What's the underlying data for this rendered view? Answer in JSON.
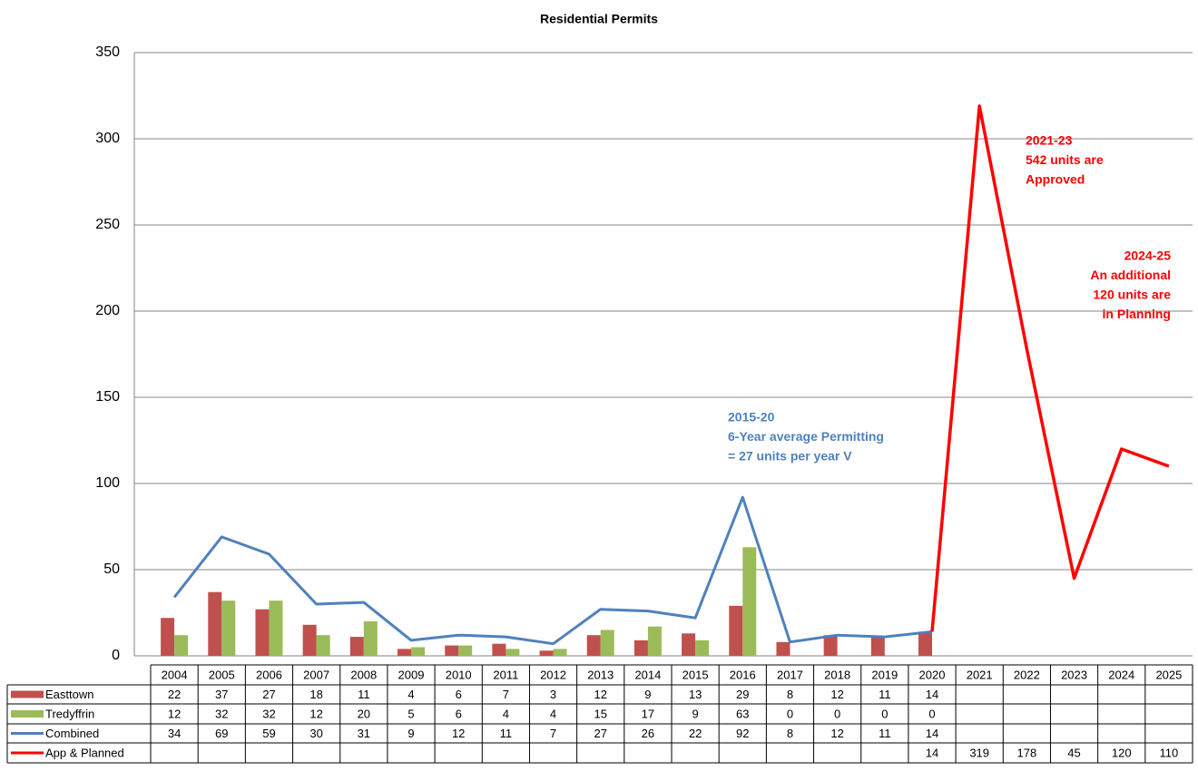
{
  "chart_data": {
    "type": "bar",
    "title": "Residential Permits",
    "categories": [
      "2004",
      "2005",
      "2006",
      "2007",
      "2008",
      "2009",
      "2010",
      "2011",
      "2012",
      "2013",
      "2014",
      "2015",
      "2016",
      "2017",
      "2018",
      "2019",
      "2020",
      "2021",
      "2022",
      "2023",
      "2024",
      "2025"
    ],
    "series": [
      {
        "name": "Easttown",
        "type": "bar",
        "color": "#c0504d",
        "values": [
          22,
          37,
          27,
          18,
          11,
          4,
          6,
          7,
          3,
          12,
          9,
          13,
          29,
          8,
          12,
          11,
          14,
          null,
          null,
          null,
          null,
          null
        ]
      },
      {
        "name": "Tredyffrin",
        "type": "bar",
        "color": "#9bbb59",
        "values": [
          12,
          32,
          32,
          12,
          20,
          5,
          6,
          4,
          4,
          15,
          17,
          9,
          63,
          0,
          0,
          0,
          0,
          null,
          null,
          null,
          null,
          null
        ]
      },
      {
        "name": "Combined",
        "type": "line",
        "color": "#4f81bd",
        "values": [
          34,
          69,
          59,
          30,
          31,
          9,
          12,
          11,
          7,
          27,
          26,
          22,
          92,
          8,
          12,
          11,
          14,
          null,
          null,
          null,
          null,
          null
        ]
      },
      {
        "name": "App & Planned",
        "type": "line",
        "color": "#ff0000",
        "values": [
          null,
          null,
          null,
          null,
          null,
          null,
          null,
          null,
          null,
          null,
          null,
          null,
          null,
          null,
          null,
          null,
          14,
          319,
          178,
          45,
          120,
          110
        ]
      }
    ],
    "ylim": [
      0,
      350
    ],
    "yticks": [
      0,
      50,
      100,
      150,
      200,
      250,
      300,
      350
    ],
    "grid": true,
    "annotations": [
      {
        "color": "#4f81bd",
        "lines": [
          "2015-20",
          "6-Year average Permitting",
          "= 27 units per year        V"
        ]
      },
      {
        "color": "#ff0000",
        "lines": [
          "2021-23",
          "542 units are",
          "Approved"
        ]
      },
      {
        "color": "#ff0000",
        "lines": [
          "2024-25",
          "An additional",
          "120 units are",
          "in Planning"
        ]
      }
    ]
  }
}
